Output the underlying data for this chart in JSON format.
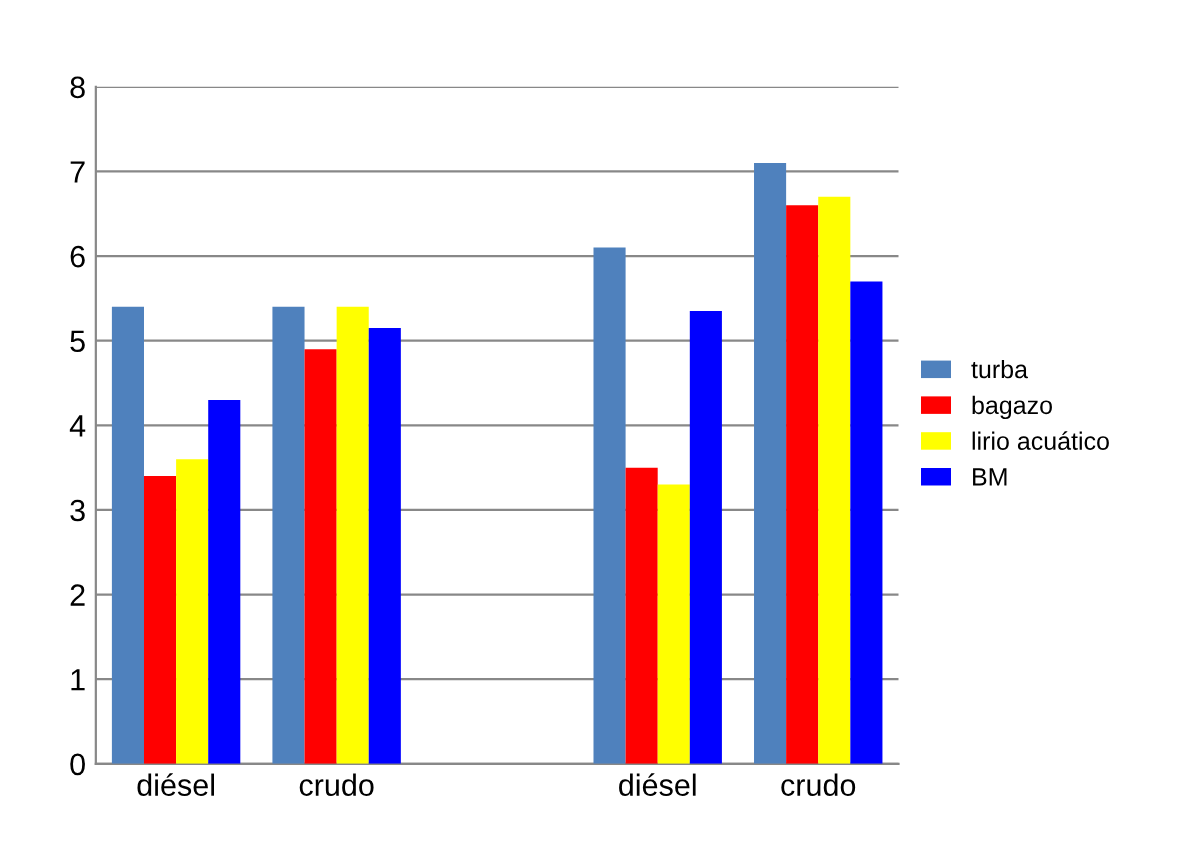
{
  "chart_data": {
    "type": "bar",
    "categories": [
      "diésel",
      "crudo",
      null,
      "diésel",
      "crudo"
    ],
    "series": [
      {
        "name": "turba",
        "color": "#4f81bd",
        "values": [
          5.4,
          5.4,
          null,
          6.1,
          7.1
        ]
      },
      {
        "name": "bagazo",
        "color": "#ff0000",
        "values": [
          3.4,
          4.9,
          null,
          3.5,
          6.6
        ]
      },
      {
        "name": "lirio acuático",
        "color": "#ffff00",
        "values": [
          3.6,
          5.4,
          null,
          3.3,
          6.7
        ]
      },
      {
        "name": "BM",
        "color": "#0000ff",
        "values": [
          4.3,
          5.15,
          null,
          5.35,
          5.7
        ]
      }
    ],
    "ylim": [
      0,
      8
    ],
    "yticks": [
      0,
      1,
      2,
      3,
      4,
      5,
      6,
      7,
      8
    ],
    "grid": "y",
    "legend": "right"
  }
}
